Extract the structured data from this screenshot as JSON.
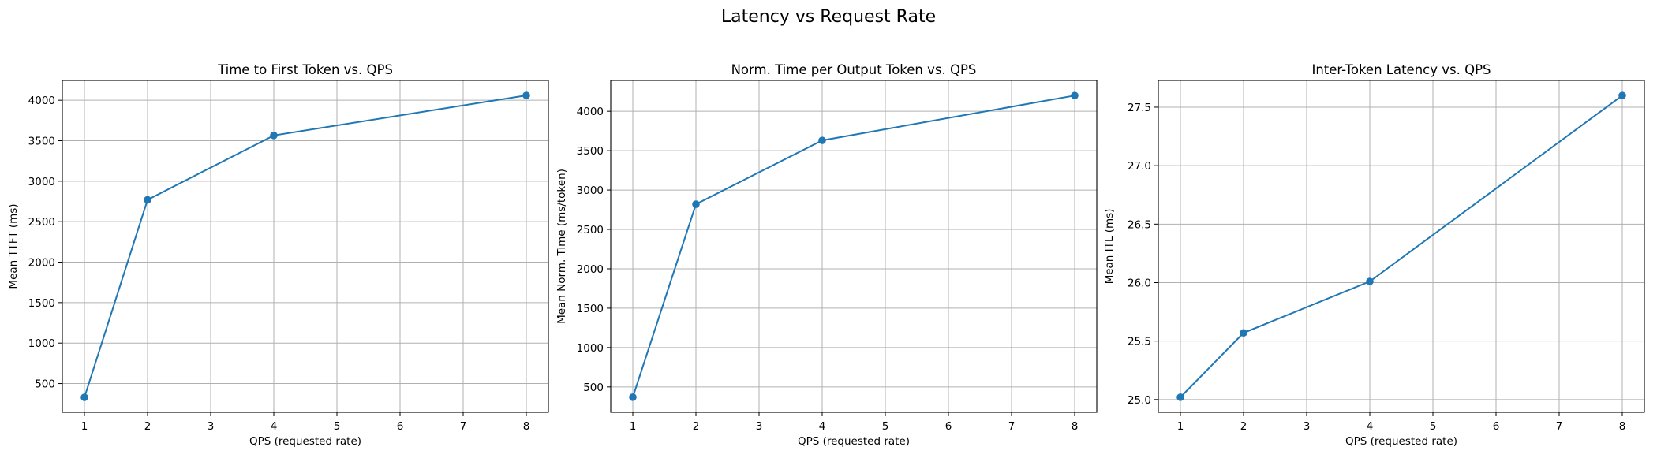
{
  "figure": {
    "title": "Latency vs Request Rate"
  },
  "style": {
    "series_color": "#1f77b4",
    "grid": true,
    "marker": "circle"
  },
  "chart_data": [
    {
      "type": "line",
      "title": "Time to First Token vs. QPS",
      "xlabel": "QPS (requested rate)",
      "ylabel": "Mean TTFT (ms)",
      "x": [
        1,
        2,
        4,
        8
      ],
      "y": [
        330,
        2770,
        3565,
        4060
      ],
      "xlim": [
        0.65,
        8.35
      ],
      "ylim": [
        145,
        4245
      ],
      "xticks": [
        1,
        2,
        3,
        4,
        5,
        6,
        7,
        8
      ],
      "yticks": [
        500,
        1000,
        1500,
        2000,
        2500,
        3000,
        3500,
        4000
      ],
      "ytick_decimals": 0
    },
    {
      "type": "line",
      "title": "Norm. Time per Output Token vs. QPS",
      "xlabel": "QPS (requested rate)",
      "ylabel": "Mean Norm. Time (ms/token)",
      "x": [
        1,
        2,
        4,
        8
      ],
      "y": [
        370,
        2820,
        3630,
        4200
      ],
      "xlim": [
        0.65,
        8.35
      ],
      "ylim": [
        178,
        4392
      ],
      "xticks": [
        1,
        2,
        3,
        4,
        5,
        6,
        7,
        8
      ],
      "yticks": [
        500,
        1000,
        1500,
        2000,
        2500,
        3000,
        3500,
        4000
      ],
      "ytick_decimals": 0
    },
    {
      "type": "line",
      "title": "Inter-Token Latency vs. QPS",
      "xlabel": "QPS (requested rate)",
      "ylabel": "Mean ITL (ms)",
      "x": [
        1,
        2,
        4,
        8
      ],
      "y": [
        25.02,
        25.57,
        26.01,
        27.6
      ],
      "xlim": [
        0.65,
        8.35
      ],
      "ylim": [
        24.891,
        27.729
      ],
      "xticks": [
        1,
        2,
        3,
        4,
        5,
        6,
        7,
        8
      ],
      "yticks": [
        25.0,
        25.5,
        26.0,
        26.5,
        27.0,
        27.5
      ],
      "ytick_decimals": 1
    }
  ]
}
